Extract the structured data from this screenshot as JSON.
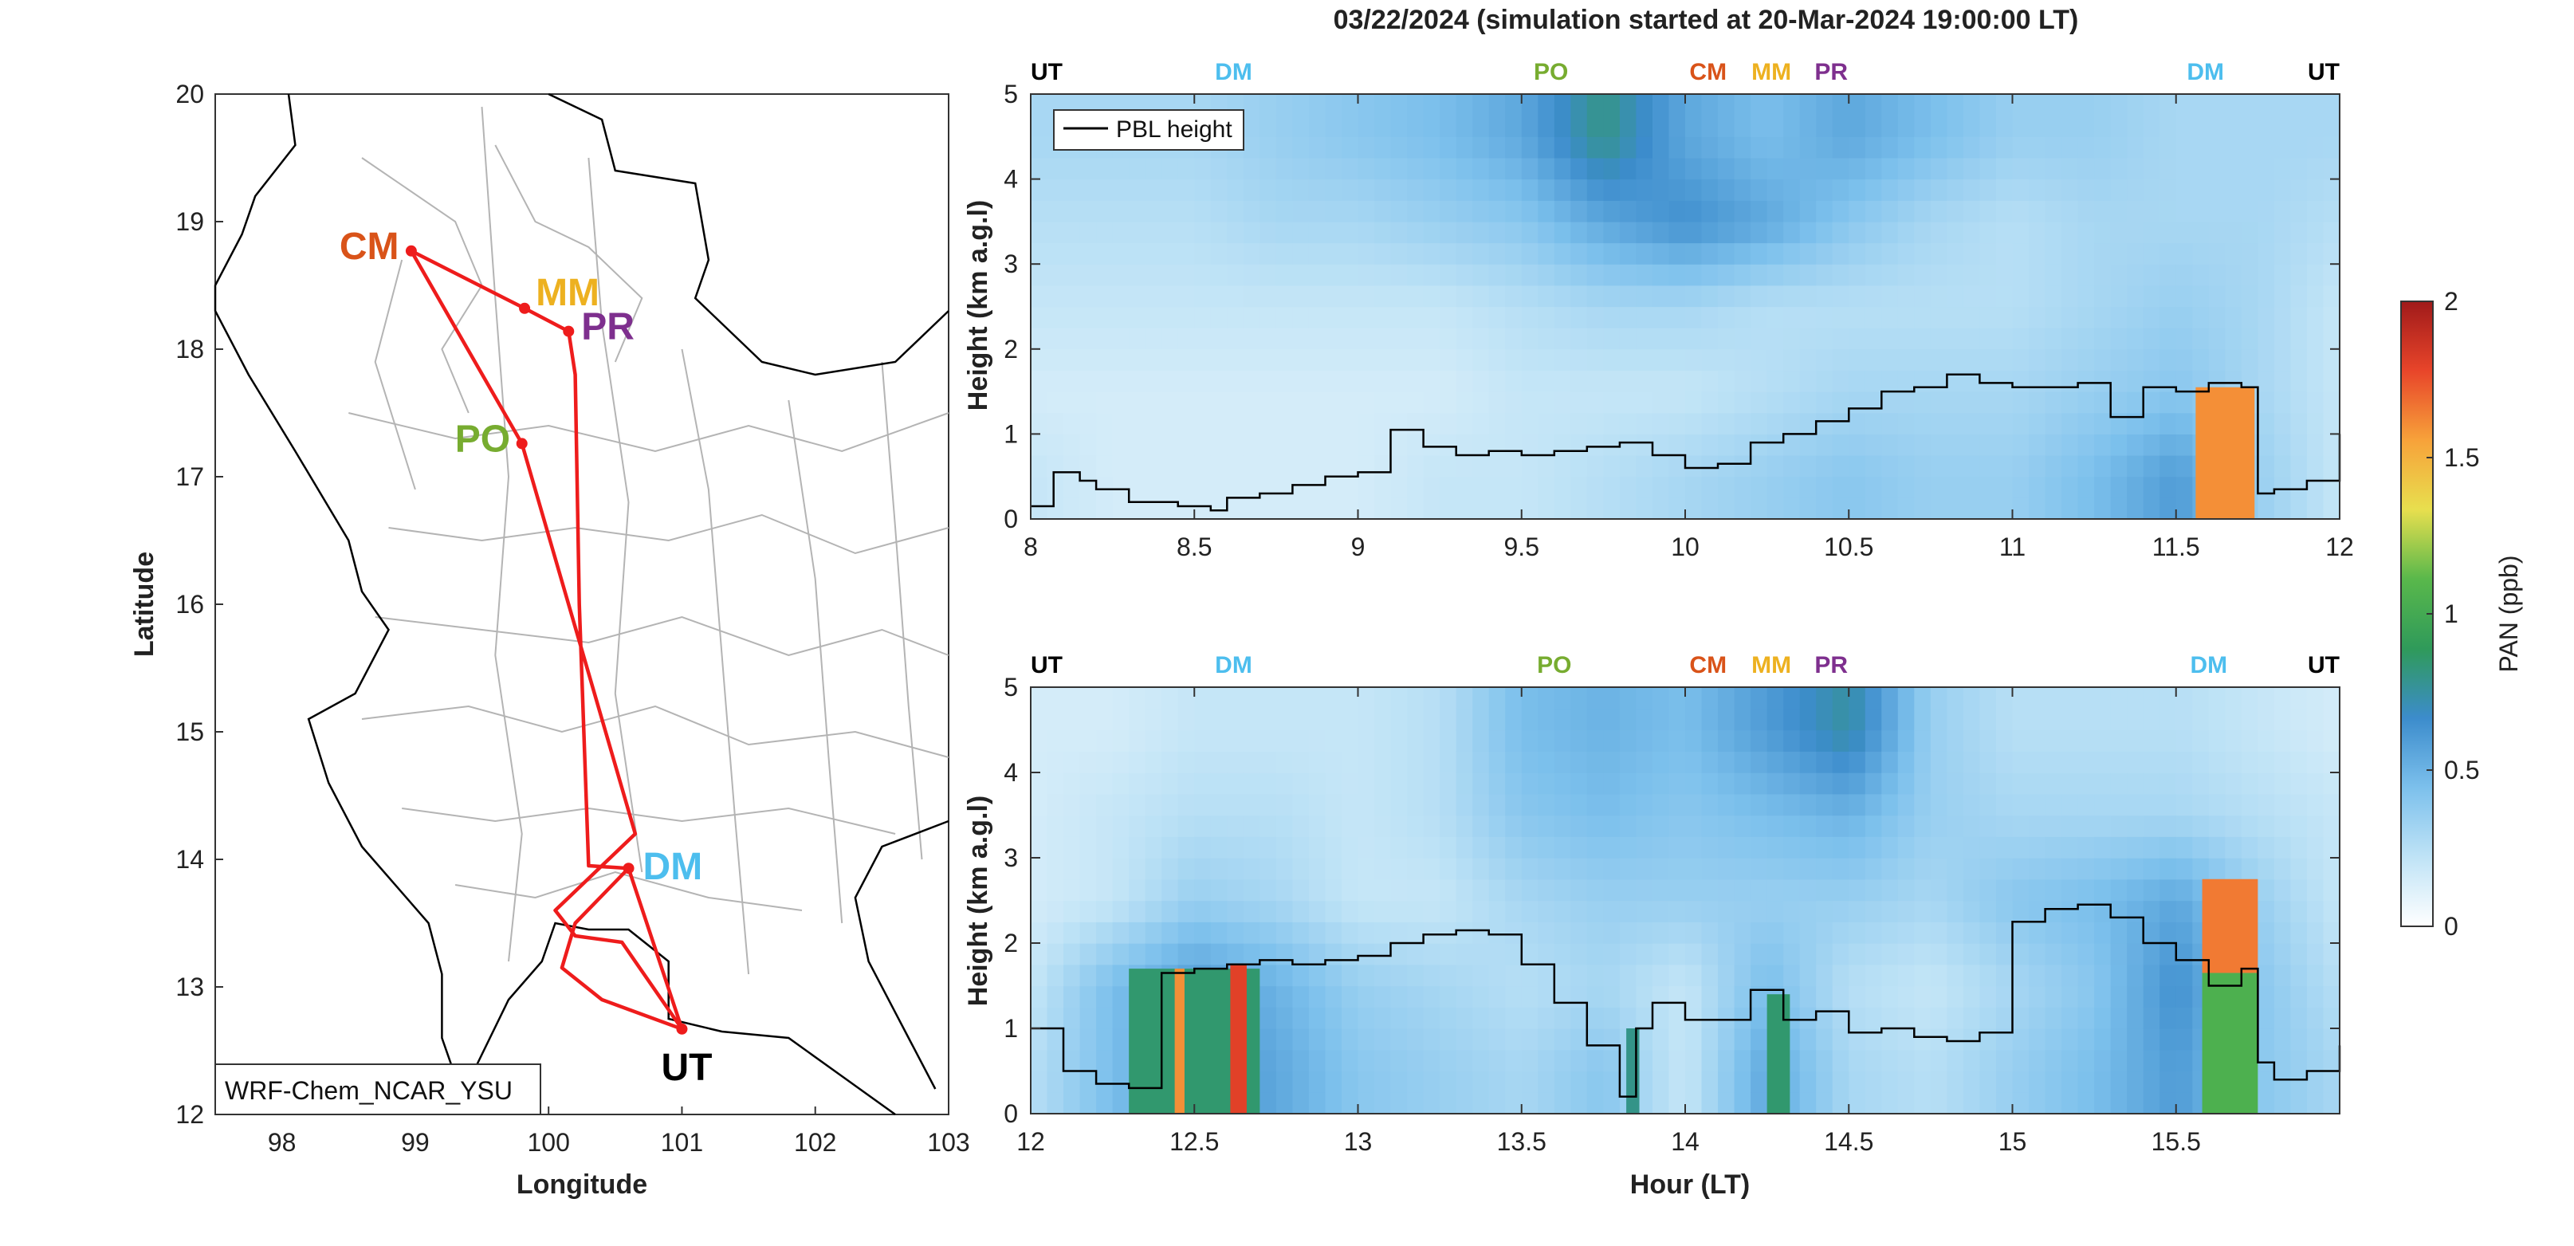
{
  "title": "03/22/2024 (simulation started at 20-Mar-2024 19:00:00 LT)",
  "map": {
    "xlabel": "Longitude",
    "ylabel": "Latitude",
    "xticks": [
      98,
      99,
      100,
      101,
      102,
      103
    ],
    "yticks": [
      12,
      13,
      14,
      15,
      16,
      17,
      18,
      19,
      20
    ],
    "xlim": [
      97.5,
      103
    ],
    "ylim": [
      12,
      20
    ],
    "model_label": "WRF-Chem_NCAR_YSU",
    "route_color": "#ee1c1c",
    "sites": [
      {
        "code": "CM",
        "lon": 98.97,
        "lat": 18.77,
        "color": "#d95319"
      },
      {
        "code": "MM",
        "lon": 99.82,
        "lat": 18.32,
        "color": "#edb120"
      },
      {
        "code": "PR",
        "lon": 100.15,
        "lat": 18.14,
        "color": "#7e2f8e"
      },
      {
        "code": "PO",
        "lon": 99.8,
        "lat": 17.26,
        "color": "#77ac30"
      },
      {
        "code": "DM",
        "lon": 100.6,
        "lat": 13.93,
        "color": "#4dbeee"
      },
      {
        "code": "UT",
        "lon": 101.0,
        "lat": 12.67,
        "color": "#000000"
      }
    ],
    "route": [
      [
        101.0,
        12.67
      ],
      [
        100.6,
        13.93
      ],
      [
        100.3,
        13.95
      ],
      [
        100.23,
        16.0
      ],
      [
        100.2,
        17.8
      ],
      [
        100.15,
        18.14
      ],
      [
        99.82,
        18.32
      ],
      [
        98.97,
        18.77
      ],
      [
        99.8,
        17.26
      ],
      [
        100.65,
        14.2
      ],
      [
        100.05,
        13.6
      ],
      [
        100.2,
        13.4
      ],
      [
        100.55,
        13.35
      ],
      [
        101.0,
        12.67
      ],
      [
        100.4,
        12.9
      ],
      [
        100.1,
        13.15
      ],
      [
        100.2,
        13.5
      ],
      [
        100.6,
        13.93
      ]
    ]
  },
  "chart_data": [
    {
      "type": "heatmap",
      "panel": "upper",
      "title": "03/22/2024 (simulation started at 20-Mar-2024 19:00:00 LT)",
      "xlabel": "",
      "ylabel": "Height (km a.g.l)",
      "xlim": [
        8,
        12
      ],
      "ylim": [
        0,
        5
      ],
      "xticks": [
        "8",
        "8.5",
        "9",
        "9.5",
        "10",
        "10.5",
        "11",
        "11.5",
        "12"
      ],
      "yticks": [
        "0",
        "1",
        "2",
        "3",
        "4",
        "5"
      ],
      "legend": {
        "entries": [
          "PBL height"
        ],
        "placement": "top-left"
      },
      "site_markers": [
        {
          "code": "UT",
          "x": 8.0,
          "color": "#000000"
        },
        {
          "code": "DM",
          "x": 8.62,
          "color": "#4dbeee"
        },
        {
          "code": "PO",
          "x": 9.59,
          "color": "#77ac30"
        },
        {
          "code": "CM",
          "x": 10.07,
          "color": "#d95319"
        },
        {
          "code": "MM",
          "x": 10.3,
          "color": "#edb120"
        },
        {
          "code": "PR",
          "x": 10.42,
          "color": "#7e2f8e"
        },
        {
          "code": "DM",
          "x": 11.59,
          "color": "#4dbeee"
        },
        {
          "code": "UT",
          "x": 12.0,
          "color": "#000000"
        }
      ],
      "pbl_height": {
        "x": [
          8.0,
          8.07,
          8.15,
          8.2,
          8.25,
          8.3,
          8.35,
          8.45,
          8.5,
          8.55,
          8.6,
          8.7,
          8.8,
          8.9,
          9.0,
          9.1,
          9.2,
          9.3,
          9.4,
          9.5,
          9.6,
          9.7,
          9.8,
          9.9,
          10.0,
          10.1,
          10.2,
          10.3,
          10.4,
          10.5,
          10.6,
          10.7,
          10.8,
          10.9,
          11.0,
          11.1,
          11.2,
          11.3,
          11.4,
          11.5,
          11.6,
          11.7,
          11.75,
          11.8,
          11.9,
          12.0
        ],
        "y": [
          0.15,
          0.55,
          0.45,
          0.35,
          0.35,
          0.2,
          0.2,
          0.15,
          0.15,
          0.1,
          0.25,
          0.3,
          0.4,
          0.5,
          0.55,
          1.05,
          0.85,
          0.75,
          0.8,
          0.75,
          0.8,
          0.85,
          0.9,
          0.75,
          0.6,
          0.65,
          0.9,
          1.0,
          1.15,
          1.3,
          1.5,
          1.55,
          1.7,
          1.6,
          1.55,
          1.55,
          1.6,
          1.2,
          1.55,
          1.5,
          1.6,
          1.55,
          0.3,
          0.35,
          0.45,
          1.0
        ]
      },
      "field_pan_ppb": {
        "x": [
          8.0,
          8.25,
          8.5,
          8.75,
          9.0,
          9.25,
          9.5,
          9.75,
          10.0,
          10.25,
          10.5,
          10.75,
          11.0,
          11.25,
          11.5,
          11.75,
          12.0
        ],
        "y": [
          0.5,
          1.5,
          2.5,
          3.5,
          4.5
        ],
        "z": [
          [
            0.2,
            0.15,
            0.15,
            0.15,
            0.15,
            0.2,
            0.2,
            0.25,
            0.3,
            0.35,
            0.4,
            0.35,
            0.35,
            0.45,
            0.6,
            0.35,
            0.2
          ],
          [
            0.15,
            0.15,
            0.15,
            0.15,
            0.15,
            0.15,
            0.2,
            0.2,
            0.2,
            0.25,
            0.3,
            0.3,
            0.3,
            0.35,
            0.4,
            0.3,
            0.2
          ],
          [
            0.2,
            0.2,
            0.2,
            0.2,
            0.2,
            0.2,
            0.25,
            0.3,
            0.3,
            0.25,
            0.25,
            0.25,
            0.25,
            0.3,
            0.35,
            0.3,
            0.2
          ],
          [
            0.25,
            0.25,
            0.25,
            0.3,
            0.3,
            0.35,
            0.4,
            0.55,
            0.65,
            0.55,
            0.4,
            0.3,
            0.25,
            0.3,
            0.3,
            0.3,
            0.25
          ],
          [
            0.3,
            0.3,
            0.3,
            0.35,
            0.4,
            0.45,
            0.55,
            0.8,
            0.55,
            0.45,
            0.55,
            0.45,
            0.35,
            0.35,
            0.3,
            0.3,
            0.3
          ]
        ]
      },
      "plume": {
        "x0": 11.56,
        "x1": 11.74,
        "y0": 0.0,
        "y1": 1.55,
        "peak_ppb": 1.6
      }
    },
    {
      "type": "heatmap",
      "panel": "lower",
      "xlabel": "Hour (LT)",
      "ylabel": "Height (km a.g.l)",
      "xlim": [
        12,
        16
      ],
      "ylim": [
        0,
        5
      ],
      "xticks": [
        "12",
        "12.5",
        "13",
        "13.5",
        "14",
        "14.5",
        "15",
        "15.5"
      ],
      "yticks": [
        "0",
        "1",
        "2",
        "3",
        "4",
        "5"
      ],
      "site_markers": [
        {
          "code": "UT",
          "x": 12.0,
          "color": "#000000"
        },
        {
          "code": "DM",
          "x": 12.62,
          "color": "#4dbeee"
        },
        {
          "code": "PO",
          "x": 13.6,
          "color": "#77ac30"
        },
        {
          "code": "CM",
          "x": 14.07,
          "color": "#d95319"
        },
        {
          "code": "MM",
          "x": 14.3,
          "color": "#edb120"
        },
        {
          "code": "PR",
          "x": 14.42,
          "color": "#7e2f8e"
        },
        {
          "code": "DM",
          "x": 15.6,
          "color": "#4dbeee"
        },
        {
          "code": "UT",
          "x": 16.0,
          "color": "#000000"
        }
      ],
      "pbl_height": {
        "x": [
          12.0,
          12.1,
          12.2,
          12.3,
          12.4,
          12.5,
          12.6,
          12.7,
          12.8,
          12.9,
          13.0,
          13.1,
          13.2,
          13.3,
          13.4,
          13.5,
          13.6,
          13.7,
          13.8,
          13.85,
          13.9,
          14.0,
          14.1,
          14.2,
          14.3,
          14.4,
          14.5,
          14.6,
          14.7,
          14.8,
          14.9,
          15.0,
          15.1,
          15.2,
          15.3,
          15.4,
          15.5,
          15.6,
          15.7,
          15.75,
          15.8,
          15.9,
          16.0
        ],
        "y": [
          1.0,
          0.5,
          0.35,
          0.3,
          1.65,
          1.7,
          1.75,
          1.8,
          1.75,
          1.8,
          1.85,
          2.0,
          2.1,
          2.15,
          2.1,
          1.75,
          1.3,
          0.8,
          0.2,
          1.0,
          1.3,
          1.1,
          1.1,
          1.45,
          1.1,
          1.2,
          0.95,
          1.0,
          0.9,
          0.85,
          0.95,
          2.25,
          2.4,
          2.45,
          2.3,
          2.0,
          1.8,
          1.5,
          1.7,
          0.6,
          0.4,
          0.5,
          0.8
        ]
      },
      "field_pan_ppb": {
        "x": [
          12.0,
          12.25,
          12.5,
          12.75,
          13.0,
          13.25,
          13.5,
          13.75,
          14.0,
          14.25,
          14.5,
          14.75,
          15.0,
          15.25,
          15.5,
          15.75,
          16.0
        ],
        "y": [
          0.5,
          1.5,
          2.5,
          3.5,
          4.5
        ],
        "z": [
          [
            0.25,
            0.45,
            0.65,
            0.55,
            0.4,
            0.35,
            0.3,
            0.4,
            0.2,
            0.55,
            0.3,
            0.25,
            0.35,
            0.45,
            0.6,
            0.4,
            0.3
          ],
          [
            0.2,
            0.45,
            0.6,
            0.5,
            0.35,
            0.3,
            0.25,
            0.3,
            0.2,
            0.45,
            0.25,
            0.2,
            0.3,
            0.4,
            0.65,
            0.4,
            0.25
          ],
          [
            0.15,
            0.2,
            0.35,
            0.3,
            0.2,
            0.2,
            0.3,
            0.35,
            0.35,
            0.35,
            0.35,
            0.3,
            0.4,
            0.45,
            0.55,
            0.35,
            0.2
          ],
          [
            0.15,
            0.2,
            0.25,
            0.25,
            0.2,
            0.25,
            0.4,
            0.45,
            0.4,
            0.45,
            0.5,
            0.35,
            0.3,
            0.3,
            0.3,
            0.25,
            0.2
          ],
          [
            0.15,
            0.15,
            0.2,
            0.2,
            0.2,
            0.25,
            0.45,
            0.5,
            0.45,
            0.6,
            0.75,
            0.35,
            0.25,
            0.25,
            0.25,
            0.2,
            0.15
          ]
        ]
      },
      "plumes": [
        {
          "x0": 12.3,
          "x1": 12.7,
          "y0": 0.0,
          "y1": 1.7,
          "peak_ppb": 0.85
        },
        {
          "x0": 12.44,
          "x1": 12.47,
          "y0": 0.0,
          "y1": 1.7,
          "peak_ppb": 1.6
        },
        {
          "x0": 12.61,
          "x1": 12.66,
          "y0": 0.0,
          "y1": 1.75,
          "peak_ppb": 1.8
        },
        {
          "x0": 13.82,
          "x1": 13.86,
          "y0": 0.0,
          "y1": 1.0,
          "peak_ppb": 0.8
        },
        {
          "x0": 14.25,
          "x1": 14.32,
          "y0": 0.0,
          "y1": 1.4,
          "peak_ppb": 0.85
        },
        {
          "x0": 15.58,
          "x1": 15.75,
          "y0": 0.0,
          "y1": 1.65,
          "peak_ppb": 1.05
        },
        {
          "x0": 15.58,
          "x1": 15.75,
          "y0": 1.65,
          "y1": 2.75,
          "peak_ppb": 1.65
        }
      ]
    }
  ],
  "colorbar": {
    "label": "PAN (ppb)",
    "ticks": [
      "0",
      "0.5",
      "1",
      "1.5",
      "2"
    ],
    "lim": [
      0,
      2
    ],
    "colors": [
      "#ffffff",
      "#bfe3f6",
      "#7cc0ec",
      "#3c8ccc",
      "#2f9a5a",
      "#59b84b",
      "#e8df4e",
      "#f7a23a",
      "#e8452a",
      "#a01a1a"
    ]
  }
}
